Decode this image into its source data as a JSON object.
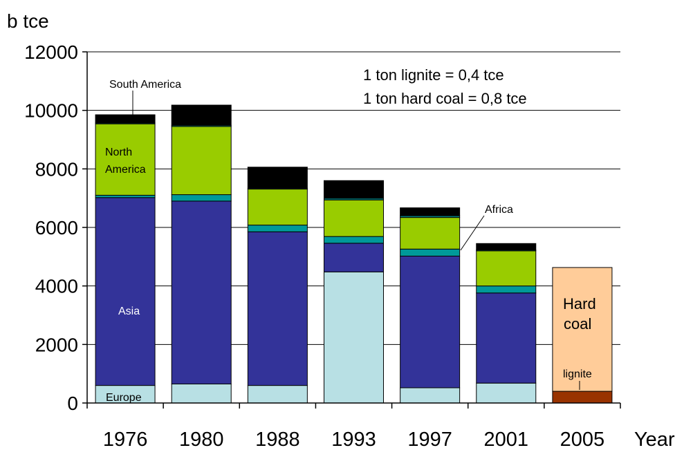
{
  "chart_data": {
    "type": "bar",
    "stacked": true,
    "ylabel": "b tce",
    "xlabel": "Year",
    "ylim": [
      0,
      12000
    ],
    "yticks": [
      0,
      2000,
      4000,
      6000,
      8000,
      10000,
      12000
    ],
    "grid": true,
    "categories": [
      "1976",
      "1980",
      "1988",
      "1993",
      "1997",
      "2001",
      "2005"
    ],
    "series": [
      {
        "name": "Europe",
        "color": "#b8e0e4",
        "values": [
          600,
          650,
          600,
          4480,
          520,
          680,
          0
        ]
      },
      {
        "name": "Asia",
        "color": "#333399",
        "values": [
          6420,
          6250,
          5250,
          980,
          4500,
          3080,
          0
        ]
      },
      {
        "name": "Africa",
        "color": "#009999",
        "values": [
          80,
          220,
          230,
          230,
          240,
          240,
          0
        ]
      },
      {
        "name": "North America",
        "color": "#99cc00",
        "values": [
          2440,
          2330,
          1230,
          1250,
          1080,
          1200,
          0
        ]
      },
      {
        "name": "",
        "color": "#008080",
        "values": [
          30,
          40,
          30,
          60,
          60,
          30,
          0
        ]
      },
      {
        "name": "South America",
        "color": "#000000",
        "values": [
          280,
          690,
          720,
          600,
          270,
          220,
          0
        ]
      },
      {
        "name": "lignite",
        "color": "#993300",
        "values": [
          0,
          0,
          0,
          0,
          0,
          0,
          400
        ]
      },
      {
        "name": "Hard coal",
        "color": "#ffcc99",
        "values": [
          0,
          0,
          0,
          0,
          0,
          0,
          4230
        ]
      }
    ],
    "annotations": {
      "conversion_line1": "1 ton lignite = 0,4 tce",
      "conversion_line2": "1 ton hard coal   = 0,8   tce",
      "label_south_america": "South America",
      "label_north_america_1": "North",
      "label_north_america_2": "America",
      "label_africa": "Africa",
      "label_asia": "Asia",
      "label_europe": "Europe",
      "label_hard_coal_1": "Hard",
      "label_hard_coal_2": "coal",
      "label_lignite": "lignite"
    }
  }
}
